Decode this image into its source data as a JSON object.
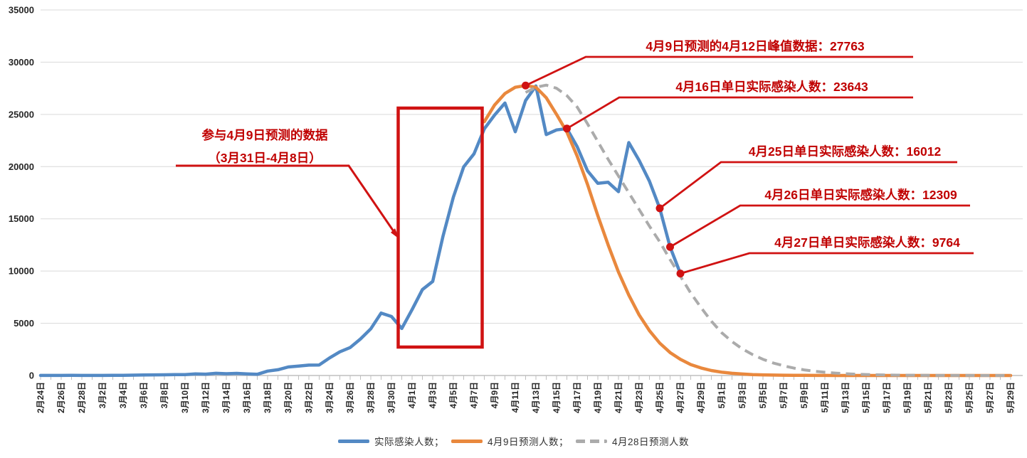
{
  "page": {
    "background": "#FFFFFF"
  },
  "chart_data": {
    "type": "line",
    "title": "",
    "xlabel": "",
    "ylabel": "",
    "ylim": [
      0,
      35000
    ],
    "y_ticks": [
      0,
      5000,
      10000,
      15000,
      20000,
      25000,
      30000,
      35000
    ],
    "grid": "horizontal",
    "legend_position": "bottom-center",
    "x_tick_step": 2,
    "x": [
      "2月24日",
      "2月25日",
      "2月26日",
      "2月27日",
      "2月28日",
      "3月1日",
      "3月2日",
      "3月3日",
      "3月4日",
      "3月5日",
      "3月6日",
      "3月7日",
      "3月8日",
      "3月9日",
      "3月10日",
      "3月11日",
      "3月12日",
      "3月13日",
      "3月14日",
      "3月15日",
      "3月16日",
      "3月17日",
      "3月18日",
      "3月19日",
      "3月20日",
      "3月21日",
      "3月22日",
      "3月23日",
      "3月24日",
      "3月25日",
      "3月26日",
      "3月27日",
      "3月28日",
      "3月29日",
      "3月30日",
      "3月31日",
      "4月1日",
      "4月2日",
      "4月3日",
      "4月4日",
      "4月5日",
      "4月6日",
      "4月7日",
      "4月8日",
      "4月9日",
      "4月10日",
      "4月11日",
      "4月12日",
      "4月13日",
      "4月14日",
      "4月15日",
      "4月16日",
      "4月17日",
      "4月18日",
      "4月19日",
      "4月20日",
      "4月21日",
      "4月22日",
      "4月23日",
      "4月24日",
      "4月25日",
      "4月26日",
      "4月27日",
      "4月28日",
      "4月29日",
      "4月30日",
      "5月1日",
      "5月2日",
      "5月3日",
      "5月4日",
      "5月5日",
      "5月6日",
      "5月7日",
      "5月8日",
      "5月9日",
      "5月10日",
      "5月11日",
      "5月12日",
      "5月13日",
      "5月14日",
      "5月15日",
      "5月16日",
      "5月17日",
      "5月18日",
      "5月19日",
      "5月20日",
      "5月21日",
      "5月22日",
      "5月23日",
      "5月24日",
      "5月25日",
      "5月26日",
      "5月27日",
      "5月28日",
      "5月29日"
    ],
    "series": [
      {
        "name": "实际感染人数；",
        "key": "actual",
        "color": "#5389C4",
        "style": "solid",
        "values": [
          10,
          9,
          10,
          16,
          6,
          4,
          8,
          19,
          20,
          37,
          49,
          64,
          67,
          80,
          87,
          147,
          129,
          210,
          169,
          202,
          159,
          115,
          424,
          551,
          817,
          896,
          993,
          1006,
          1684,
          2269,
          2676,
          3500,
          4477,
          5982,
          5653,
          4502,
          6311,
          8226,
          9006,
          13354,
          17077,
          19982,
          21222,
          23624,
          24943,
          26087,
          23342,
          26330,
          27719,
          23072,
          23513,
          23643,
          21900,
          19600,
          18400,
          18500,
          17600,
          22300,
          20600,
          18600,
          16012,
          12309,
          9764,
          null,
          null,
          null,
          null,
          null,
          null,
          null,
          null,
          null,
          null,
          null,
          null,
          null,
          null,
          null,
          null,
          null,
          null,
          null,
          null,
          null,
          null,
          null,
          null,
          null,
          null,
          null,
          null,
          null,
          null,
          null,
          null
        ]
      },
      {
        "name": "4月9日预测人数；",
        "key": "pred_apr9",
        "color": "#E9883D",
        "style": "solid",
        "values": [
          null,
          null,
          null,
          null,
          null,
          null,
          null,
          null,
          null,
          null,
          null,
          null,
          null,
          null,
          null,
          null,
          null,
          null,
          null,
          null,
          null,
          null,
          null,
          null,
          null,
          null,
          null,
          null,
          null,
          null,
          null,
          null,
          null,
          null,
          null,
          null,
          null,
          null,
          null,
          null,
          null,
          null,
          null,
          24300,
          25900,
          27000,
          27600,
          27763,
          27600,
          26600,
          25000,
          23300,
          21000,
          18300,
          15300,
          12500,
          9900,
          7700,
          5800,
          4300,
          3100,
          2200,
          1550,
          1050,
          720,
          480,
          320,
          210,
          140,
          90,
          60,
          40,
          25,
          17,
          11,
          7,
          5,
          3,
          2,
          2,
          1,
          1,
          1,
          1,
          1,
          1,
          1,
          1,
          1,
          1,
          1,
          1,
          1,
          1,
          1
        ]
      },
      {
        "name": "4月28日预测人数",
        "key": "pred_apr28",
        "color": "#ABABAB",
        "style": "dashed",
        "values": [
          null,
          null,
          null,
          null,
          null,
          null,
          null,
          null,
          null,
          null,
          null,
          null,
          null,
          null,
          null,
          null,
          null,
          null,
          null,
          null,
          null,
          null,
          null,
          null,
          null,
          null,
          null,
          null,
          null,
          null,
          null,
          null,
          null,
          null,
          null,
          null,
          null,
          null,
          null,
          null,
          null,
          null,
          null,
          null,
          null,
          null,
          null,
          27100,
          27600,
          27800,
          27500,
          26800,
          25700,
          24100,
          22400,
          20700,
          19100,
          17500,
          15900,
          14300,
          12800,
          11100,
          9500,
          7900,
          6500,
          5200,
          4100,
          3250,
          2550,
          2000,
          1550,
          1200,
          930,
          710,
          540,
          410,
          310,
          230,
          170,
          125,
          92,
          67,
          48,
          35,
          25,
          18,
          13,
          9,
          7,
          5,
          4,
          3,
          2,
          2,
          1
        ]
      }
    ],
    "callouts": [
      {
        "text": "4月9日预测的4月12日峰值数据：27763",
        "date": "4月12日",
        "value": 27763,
        "on_series": "pred_apr9"
      },
      {
        "text": "4月16日单日实际感染人数：23643",
        "date": "4月16日",
        "value": 23643,
        "on_series": "actual"
      },
      {
        "text": "4月25日单日实际感染人数：16012",
        "date": "4月25日",
        "value": 16012,
        "on_series": "actual"
      },
      {
        "text": "4月26日单日实际感染人数：12309",
        "date": "4月26日",
        "value": 12309,
        "on_series": "actual"
      },
      {
        "text": "4月27日单日实际感染人数：9764",
        "date": "4月27日",
        "value": 9764,
        "on_series": "actual"
      }
    ],
    "box_annotation": {
      "line1": "参与4月9日预测的数据",
      "line2": "（3月31日-4月8日）",
      "range_start": "3月31日",
      "range_end": "4月8日"
    },
    "colors": {
      "annotation_text": "#C00000",
      "annotation_line": "#D01212",
      "gridline": "#D9D9D9",
      "axis_line": "#BFBFBF",
      "tick_label": "#262626"
    }
  }
}
